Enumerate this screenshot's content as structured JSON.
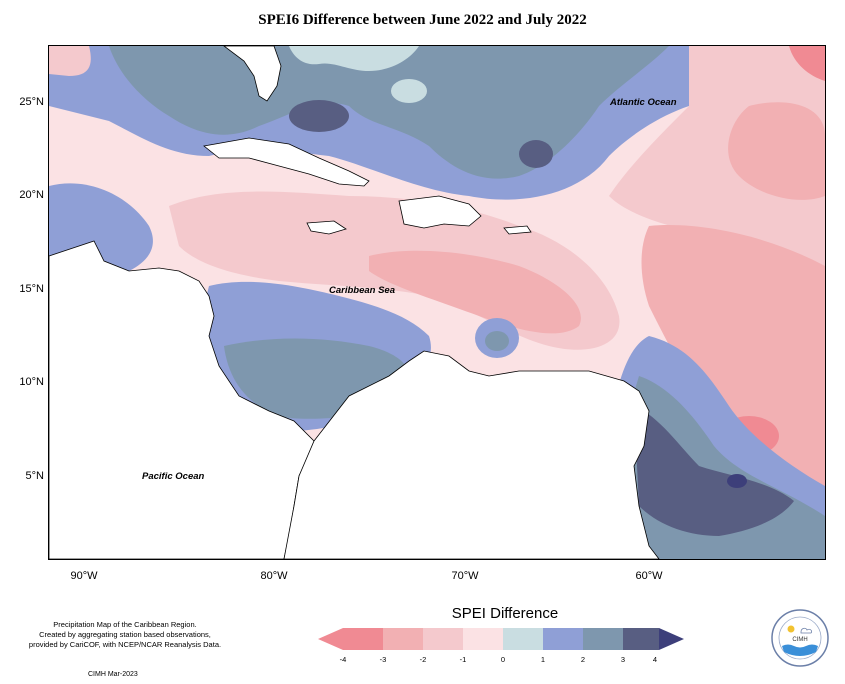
{
  "title": "SPEI6 Difference between June 2022 and July 2022",
  "latitude_labels": [
    "25°N",
    "20°N",
    "15°N",
    "10°N",
    "5°N"
  ],
  "longitude_labels": [
    "90°W",
    "80°W",
    "70°W",
    "60°W"
  ],
  "ocean_labels": {
    "atlantic": "Atlantic Ocean",
    "caribbean": "Caribbean Sea",
    "pacific": "Pacific Ocean"
  },
  "footnote": {
    "line1": "Precipitation Map of the Caribbean Region.",
    "line2": "Created by aggregating station based observations,",
    "line3": "provided by CariCOF, with NCEP/NCAR Reanalysis Data."
  },
  "credit": "CIMH Mar-2023",
  "legend": {
    "title": "SPEI Difference",
    "ticks": [
      "-4",
      "-3",
      "-2",
      "-1",
      "0",
      "1",
      "2",
      "3",
      "4"
    ],
    "colors": [
      "#f08a93",
      "#f2b0b3",
      "#f4c9cd",
      "#fbe2e4",
      "#c9dde1",
      "#8f9fd6",
      "#7e97ae",
      "#585e82",
      "#3d3f7a"
    ]
  },
  "logo_text": "CIMH"
}
